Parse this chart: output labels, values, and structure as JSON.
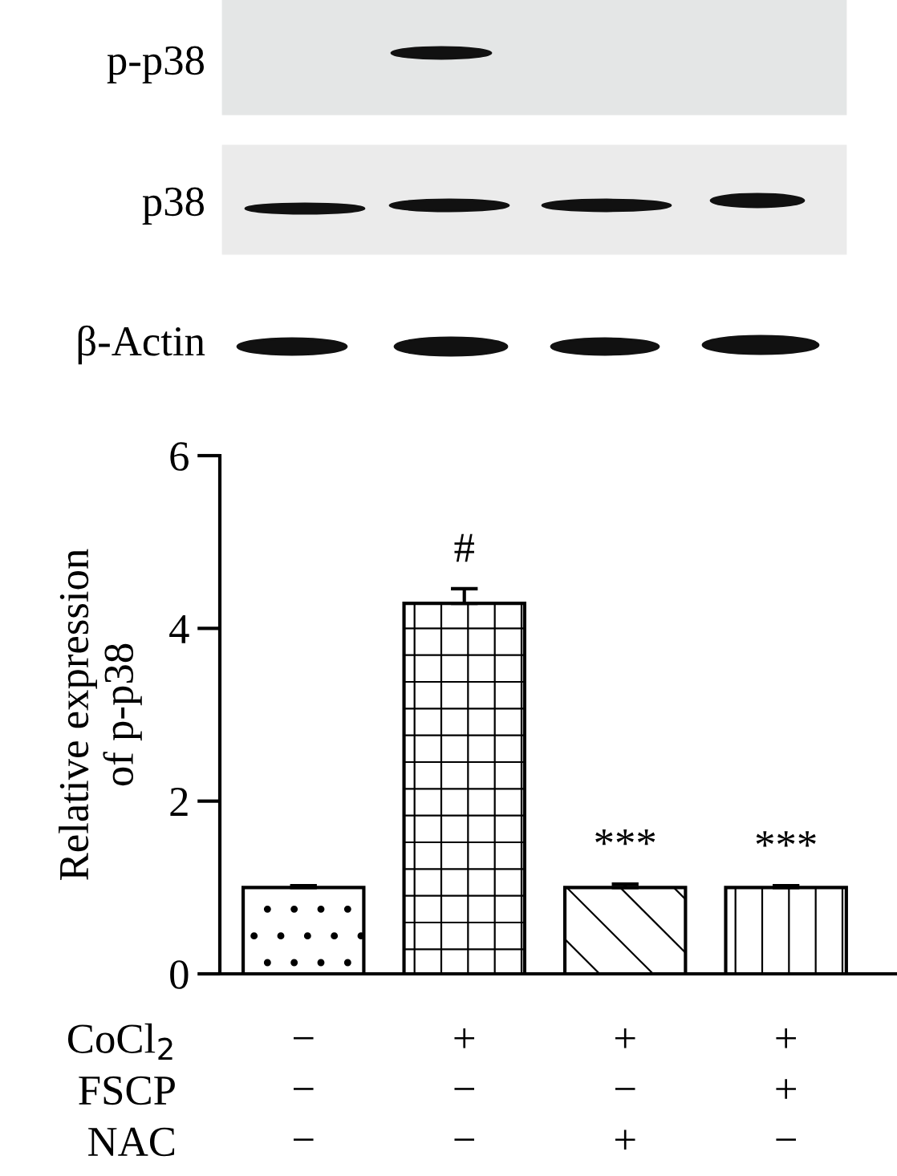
{
  "chart_data": {
    "type": "bar",
    "ylabel": "Relative expression\nof p-p38",
    "categories": [
      "−\n−\n−",
      "+\n−\n−",
      "+\n−\n+",
      "+\n+\n−"
    ],
    "values": [
      1.0,
      4.29,
      1.0,
      1.0
    ],
    "errors": [
      0.02,
      0.17,
      0.04,
      0.02
    ],
    "ylim": [
      0,
      6
    ],
    "yticks": [
      0,
      2,
      4,
      6
    ],
    "grid": false,
    "annotations": [
      {
        "text": "#",
        "x": "+\n−\n−",
        "y": 4.46
      },
      {
        "text": "***",
        "x": "+\n−\n+",
        "y": 1.04
      },
      {
        "text": "***",
        "x": "+\n+\n−",
        "y": 1.02
      },
      "CoCl$_{2}$",
      "FSCP",
      "NAC",
      "p-p38",
      "p38",
      "β-Actin"
    ]
  }
}
